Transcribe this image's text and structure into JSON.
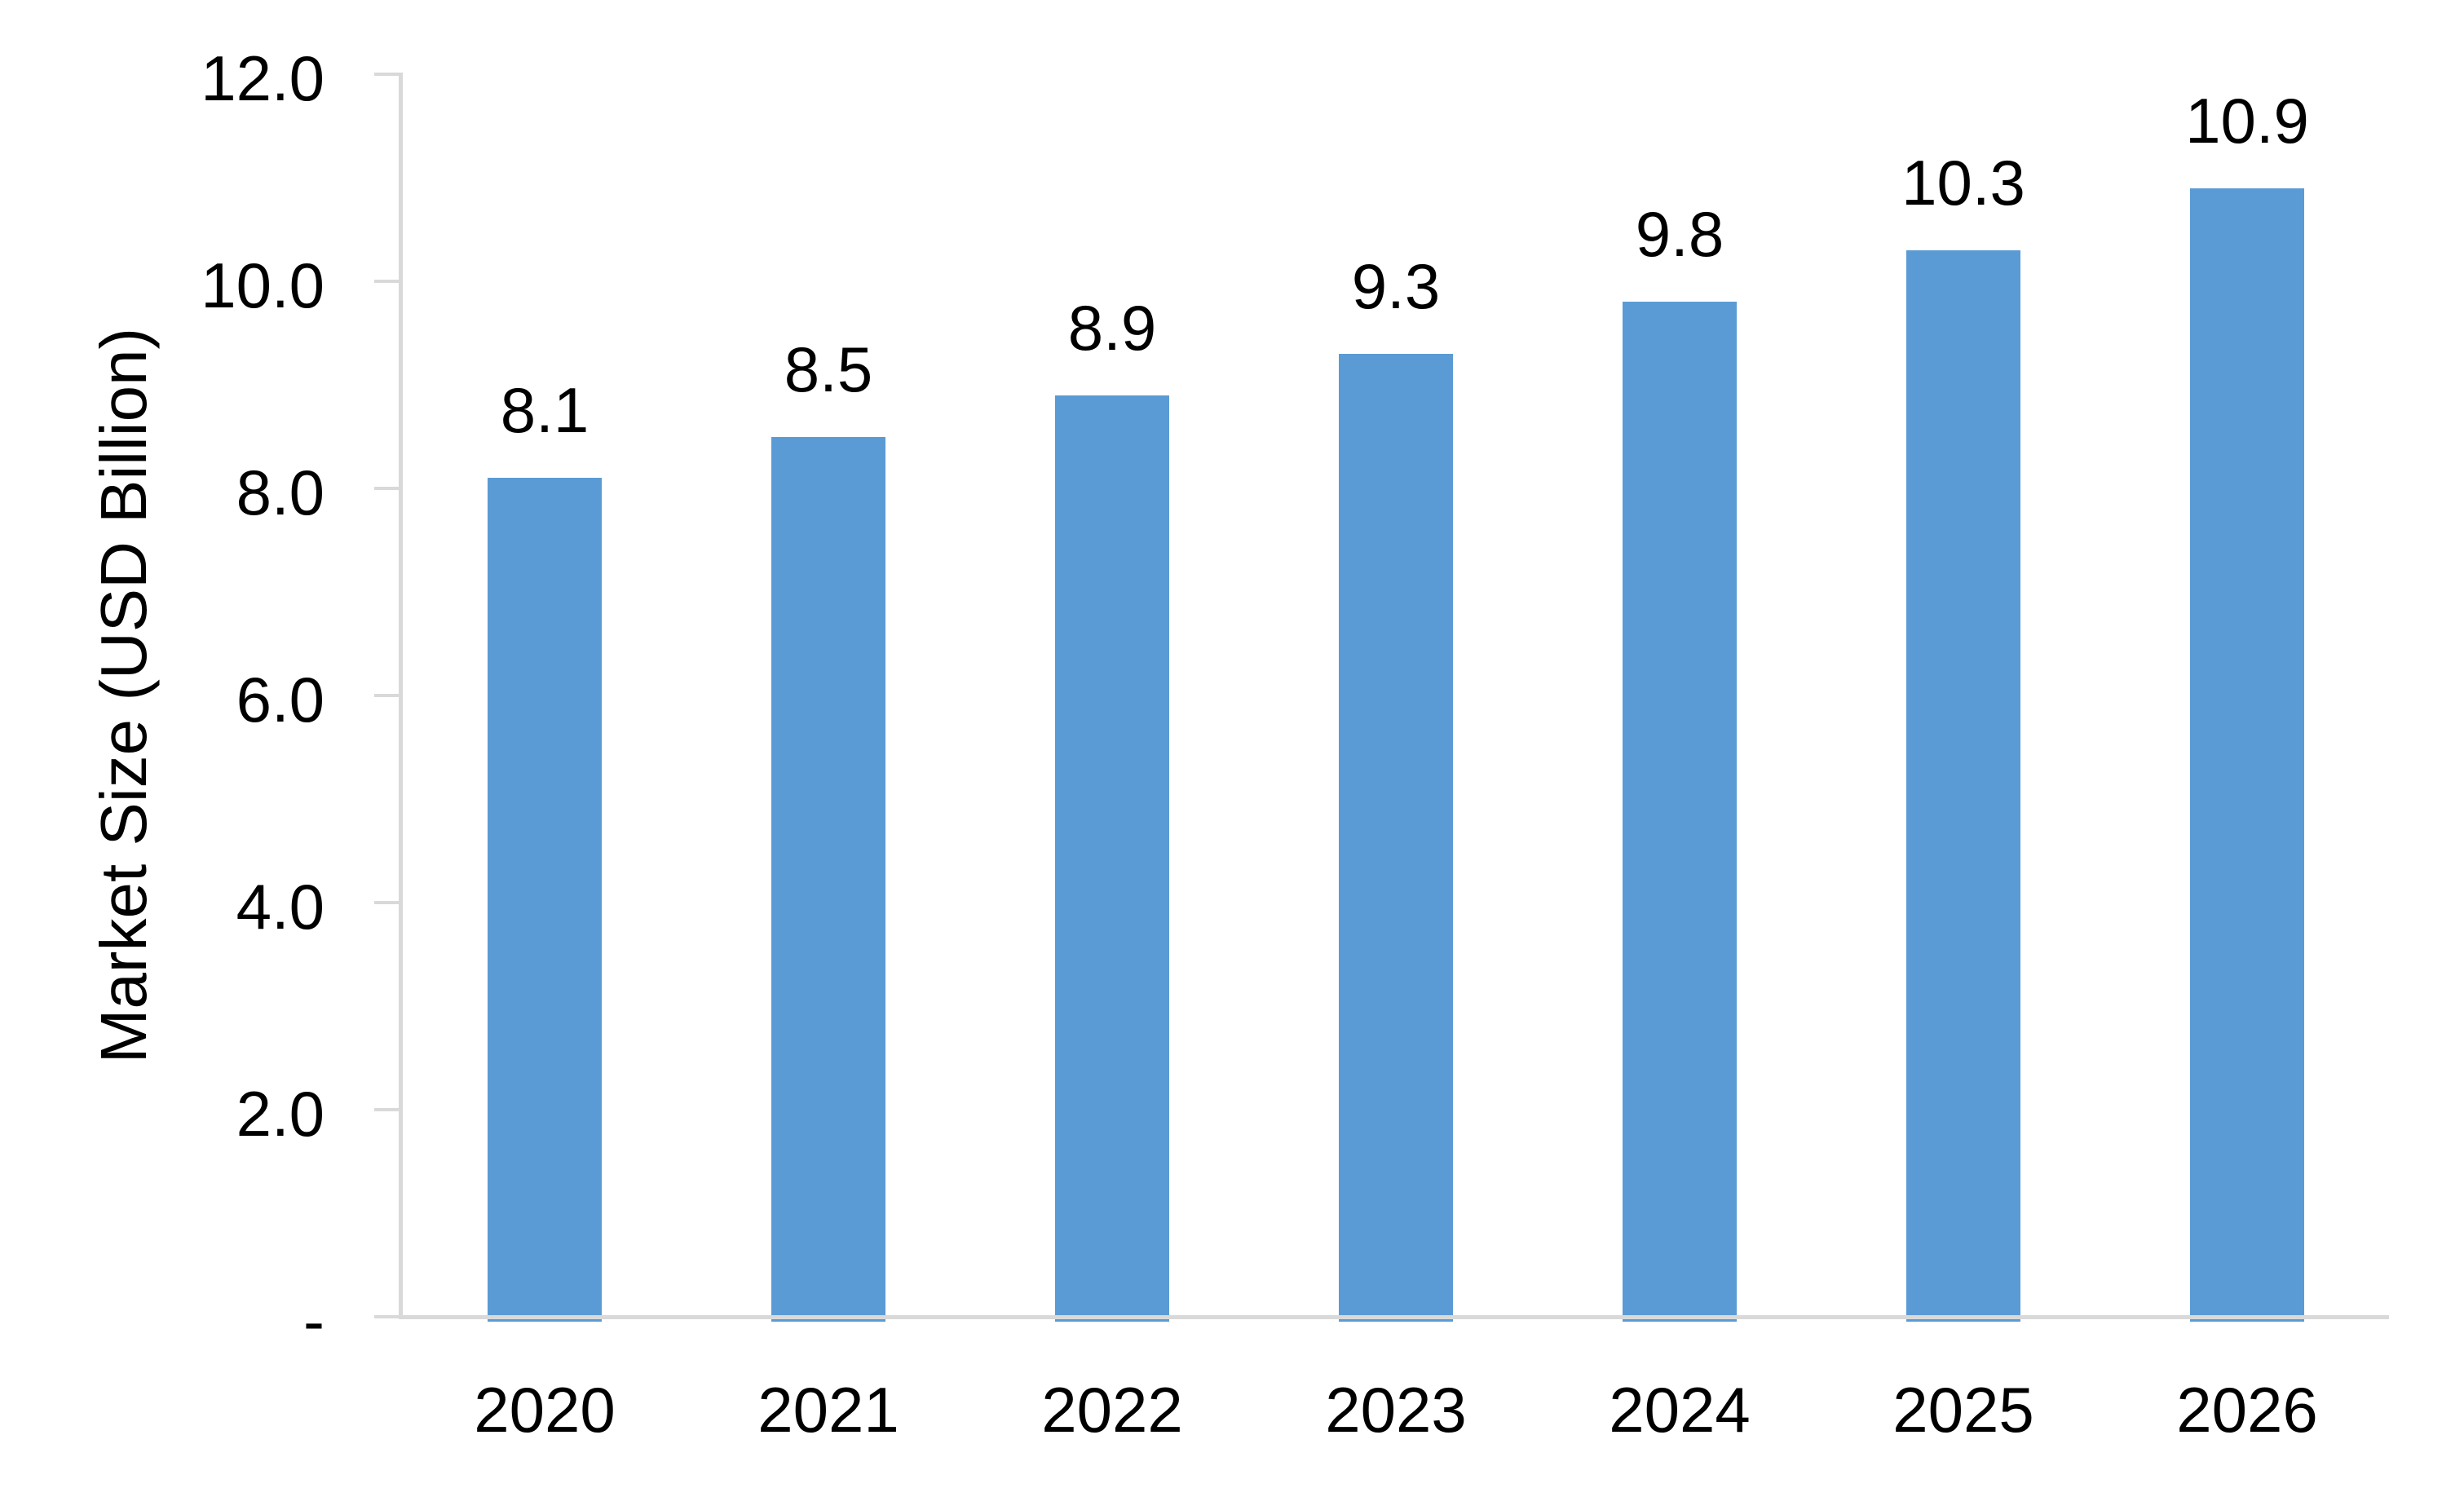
{
  "chart_data": {
    "type": "bar",
    "title": "",
    "xlabel": "",
    "ylabel": "Market Size (USD Billion)",
    "categories": [
      "2020",
      "2021",
      "2022",
      "2023",
      "2024",
      "2025",
      "2026"
    ],
    "series": [
      {
        "name": "Market Size (USD Billion)",
        "values": [
          8.1,
          8.5,
          8.9,
          9.3,
          9.8,
          10.3,
          10.9
        ]
      }
    ],
    "data_labels": [
      "8.1",
      "8.5",
      "8.9",
      "9.3",
      "9.8",
      "10.3",
      "10.9"
    ],
    "ylim": [
      0,
      12
    ],
    "ytick_step": 2,
    "yticks": [
      {
        "value": 0,
        "label": "-"
      },
      {
        "value": 2,
        "label": "2.0"
      },
      {
        "value": 4,
        "label": "4.0"
      },
      {
        "value": 6,
        "label": "6.0"
      },
      {
        "value": 8,
        "label": "8.0"
      },
      {
        "value": 10,
        "label": "10.0"
      },
      {
        "value": 12,
        "label": "12.0"
      }
    ],
    "grid": false,
    "legend": "none",
    "colors": {
      "bar": "#5B9BD5",
      "axis": "#D9D9D9",
      "text": "#000000",
      "background": "#FFFFFF"
    }
  }
}
